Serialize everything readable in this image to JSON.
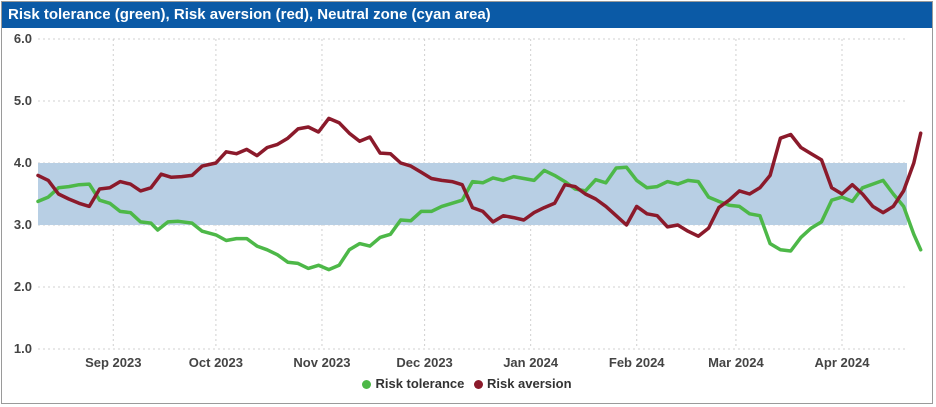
{
  "title": "Risk tolerance (green), Risk aversion (red), Neutral zone (cyan area)",
  "colors": {
    "title_bg": "#0b5aa6",
    "risk_tolerance": "#4db848",
    "risk_aversion": "#8b1a2b",
    "neutral_zone": "#b8cfe4",
    "grid": "#d0d0d0"
  },
  "chart_data": {
    "type": "line",
    "title": "Risk tolerance (green), Risk aversion (red), Neutral zone (cyan area)",
    "ylim": [
      1.0,
      6.0
    ],
    "y_ticks": [
      "1.0",
      "2.0",
      "3.0",
      "4.0",
      "5.0",
      "6.0"
    ],
    "x_range": [
      "2023-08-10",
      "2024-04-20"
    ],
    "x_ticks": [
      {
        "date": "2023-09-01",
        "label": "Sep 2023"
      },
      {
        "date": "2023-10-01",
        "label": "Oct 2023"
      },
      {
        "date": "2023-11-01",
        "label": "Nov 2023"
      },
      {
        "date": "2023-12-01",
        "label": "Dec 2023"
      },
      {
        "date": "2024-01-01",
        "label": "Jan 2024"
      },
      {
        "date": "2024-02-01",
        "label": "Feb 2024"
      },
      {
        "date": "2024-03-01",
        "label": "Mar 2024"
      },
      {
        "date": "2024-04-01",
        "label": "Apr 2024"
      }
    ],
    "neutral_zone": [
      3.0,
      4.0
    ],
    "grid": true,
    "legend": "bottom-center",
    "series": [
      {
        "name": "Risk tolerance",
        "color": "#4db848",
        "points": [
          [
            "2023-08-10",
            3.38
          ],
          [
            "2023-08-13",
            3.45
          ],
          [
            "2023-08-16",
            3.6
          ],
          [
            "2023-08-19",
            3.62
          ],
          [
            "2023-08-22",
            3.65
          ],
          [
            "2023-08-25",
            3.66
          ],
          [
            "2023-08-28",
            3.4
          ],
          [
            "2023-08-31",
            3.35
          ],
          [
            "2023-09-03",
            3.22
          ],
          [
            "2023-09-06",
            3.2
          ],
          [
            "2023-09-09",
            3.05
          ],
          [
            "2023-09-12",
            3.03
          ],
          [
            "2023-09-14",
            2.92
          ],
          [
            "2023-09-17",
            3.05
          ],
          [
            "2023-09-20",
            3.06
          ],
          [
            "2023-09-24",
            3.03
          ],
          [
            "2023-09-27",
            2.9
          ],
          [
            "2023-10-01",
            2.84
          ],
          [
            "2023-10-04",
            2.75
          ],
          [
            "2023-10-07",
            2.78
          ],
          [
            "2023-10-10",
            2.78
          ],
          [
            "2023-10-13",
            2.66
          ],
          [
            "2023-10-16",
            2.6
          ],
          [
            "2023-10-19",
            2.52
          ],
          [
            "2023-10-22",
            2.4
          ],
          [
            "2023-10-25",
            2.38
          ],
          [
            "2023-10-28",
            2.3
          ],
          [
            "2023-10-31",
            2.35
          ],
          [
            "2023-11-03",
            2.28
          ],
          [
            "2023-11-06",
            2.35
          ],
          [
            "2023-11-09",
            2.6
          ],
          [
            "2023-11-12",
            2.7
          ],
          [
            "2023-11-15",
            2.66
          ],
          [
            "2023-11-18",
            2.8
          ],
          [
            "2023-11-21",
            2.85
          ],
          [
            "2023-11-24",
            3.08
          ],
          [
            "2023-11-27",
            3.07
          ],
          [
            "2023-11-30",
            3.22
          ],
          [
            "2023-12-03",
            3.22
          ],
          [
            "2023-12-06",
            3.3
          ],
          [
            "2023-12-09",
            3.35
          ],
          [
            "2023-12-12",
            3.4
          ],
          [
            "2023-12-15",
            3.7
          ],
          [
            "2023-12-18",
            3.68
          ],
          [
            "2023-12-21",
            3.76
          ],
          [
            "2023-12-24",
            3.72
          ],
          [
            "2023-12-27",
            3.78
          ],
          [
            "2023-12-30",
            3.75
          ],
          [
            "2024-01-02",
            3.72
          ],
          [
            "2024-01-05",
            3.88
          ],
          [
            "2024-01-08",
            3.8
          ],
          [
            "2024-01-11",
            3.7
          ],
          [
            "2024-01-14",
            3.58
          ],
          [
            "2024-01-17",
            3.55
          ],
          [
            "2024-01-20",
            3.73
          ],
          [
            "2024-01-23",
            3.68
          ],
          [
            "2024-01-26",
            3.92
          ],
          [
            "2024-01-29",
            3.93
          ],
          [
            "2024-02-01",
            3.72
          ],
          [
            "2024-02-04",
            3.6
          ],
          [
            "2024-02-07",
            3.62
          ],
          [
            "2024-02-10",
            3.7
          ],
          [
            "2024-02-13",
            3.66
          ],
          [
            "2024-02-16",
            3.72
          ],
          [
            "2024-02-19",
            3.7
          ],
          [
            "2024-02-22",
            3.45
          ],
          [
            "2024-02-25",
            3.38
          ],
          [
            "2024-02-28",
            3.32
          ],
          [
            "2024-03-02",
            3.3
          ],
          [
            "2024-03-05",
            3.18
          ],
          [
            "2024-03-08",
            3.15
          ],
          [
            "2024-03-11",
            2.7
          ],
          [
            "2024-03-14",
            2.6
          ],
          [
            "2024-03-17",
            2.58
          ],
          [
            "2024-03-20",
            2.8
          ],
          [
            "2024-03-23",
            2.95
          ],
          [
            "2024-03-26",
            3.05
          ],
          [
            "2024-03-29",
            3.4
          ],
          [
            "2024-04-01",
            3.45
          ],
          [
            "2024-04-04",
            3.38
          ],
          [
            "2024-04-07",
            3.6
          ],
          [
            "2024-04-10",
            3.66
          ],
          [
            "2024-04-13",
            3.72
          ],
          [
            "2024-04-16",
            3.5
          ],
          [
            "2024-04-19",
            3.3
          ],
          [
            "2024-04-22",
            2.85
          ],
          [
            "2024-04-24",
            2.6
          ]
        ]
      },
      {
        "name": "Risk aversion",
        "color": "#8b1a2b",
        "points": [
          [
            "2023-08-10",
            3.8
          ],
          [
            "2023-08-13",
            3.72
          ],
          [
            "2023-08-16",
            3.5
          ],
          [
            "2023-08-19",
            3.42
          ],
          [
            "2023-08-22",
            3.35
          ],
          [
            "2023-08-25",
            3.3
          ],
          [
            "2023-08-28",
            3.58
          ],
          [
            "2023-08-31",
            3.6
          ],
          [
            "2023-09-03",
            3.7
          ],
          [
            "2023-09-06",
            3.66
          ],
          [
            "2023-09-09",
            3.55
          ],
          [
            "2023-09-12",
            3.6
          ],
          [
            "2023-09-15",
            3.82
          ],
          [
            "2023-09-18",
            3.77
          ],
          [
            "2023-09-21",
            3.78
          ],
          [
            "2023-09-24",
            3.8
          ],
          [
            "2023-09-27",
            3.95
          ],
          [
            "2023-10-01",
            4.0
          ],
          [
            "2023-10-04",
            4.18
          ],
          [
            "2023-10-07",
            4.15
          ],
          [
            "2023-10-10",
            4.22
          ],
          [
            "2023-10-13",
            4.12
          ],
          [
            "2023-10-16",
            4.25
          ],
          [
            "2023-10-19",
            4.3
          ],
          [
            "2023-10-22",
            4.4
          ],
          [
            "2023-10-25",
            4.55
          ],
          [
            "2023-10-28",
            4.58
          ],
          [
            "2023-10-31",
            4.5
          ],
          [
            "2023-11-03",
            4.72
          ],
          [
            "2023-11-06",
            4.65
          ],
          [
            "2023-11-09",
            4.48
          ],
          [
            "2023-11-12",
            4.35
          ],
          [
            "2023-11-15",
            4.42
          ],
          [
            "2023-11-18",
            4.16
          ],
          [
            "2023-11-21",
            4.15
          ],
          [
            "2023-11-24",
            4.0
          ],
          [
            "2023-11-27",
            3.95
          ],
          [
            "2023-11-30",
            3.85
          ],
          [
            "2023-12-03",
            3.75
          ],
          [
            "2023-12-06",
            3.72
          ],
          [
            "2023-12-09",
            3.7
          ],
          [
            "2023-12-12",
            3.65
          ],
          [
            "2023-12-15",
            3.28
          ],
          [
            "2023-12-18",
            3.22
          ],
          [
            "2023-12-21",
            3.05
          ],
          [
            "2023-12-24",
            3.15
          ],
          [
            "2023-12-27",
            3.12
          ],
          [
            "2023-12-30",
            3.08
          ],
          [
            "2024-01-02",
            3.2
          ],
          [
            "2024-01-05",
            3.28
          ],
          [
            "2024-01-08",
            3.35
          ],
          [
            "2024-01-11",
            3.65
          ],
          [
            "2024-01-14",
            3.62
          ],
          [
            "2024-01-17",
            3.5
          ],
          [
            "2024-01-20",
            3.42
          ],
          [
            "2024-01-23",
            3.3
          ],
          [
            "2024-01-26",
            3.15
          ],
          [
            "2024-01-29",
            3.0
          ],
          [
            "2024-02-01",
            3.3
          ],
          [
            "2024-02-04",
            3.18
          ],
          [
            "2024-02-07",
            3.15
          ],
          [
            "2024-02-10",
            2.97
          ],
          [
            "2024-02-13",
            3.0
          ],
          [
            "2024-02-16",
            2.9
          ],
          [
            "2024-02-19",
            2.82
          ],
          [
            "2024-02-22",
            2.95
          ],
          [
            "2024-02-25",
            3.28
          ],
          [
            "2024-02-28",
            3.4
          ],
          [
            "2024-03-02",
            3.55
          ],
          [
            "2024-03-05",
            3.5
          ],
          [
            "2024-03-08",
            3.6
          ],
          [
            "2024-03-11",
            3.8
          ],
          [
            "2024-03-14",
            4.4
          ],
          [
            "2024-03-17",
            4.46
          ],
          [
            "2024-03-20",
            4.25
          ],
          [
            "2024-03-23",
            4.15
          ],
          [
            "2024-03-26",
            4.05
          ],
          [
            "2024-03-29",
            3.6
          ],
          [
            "2024-04-01",
            3.5
          ],
          [
            "2024-04-04",
            3.65
          ],
          [
            "2024-04-07",
            3.5
          ],
          [
            "2024-04-10",
            3.3
          ],
          [
            "2024-04-13",
            3.2
          ],
          [
            "2024-04-16",
            3.3
          ],
          [
            "2024-04-19",
            3.55
          ],
          [
            "2024-04-22",
            4.0
          ],
          [
            "2024-04-24",
            4.48
          ]
        ]
      }
    ]
  }
}
